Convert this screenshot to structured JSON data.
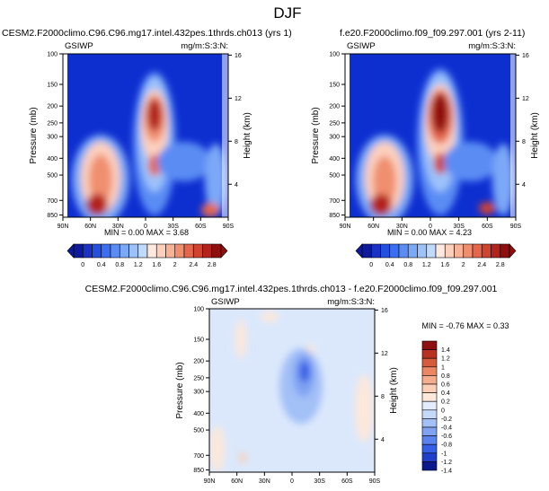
{
  "figure": {
    "title": "DJF"
  },
  "palettes": {
    "abs": [
      "#0d1a9c",
      "#1a33c4",
      "#2450e0",
      "#3b6ef0",
      "#5a8cf4",
      "#7ba8f7",
      "#9dc2fa",
      "#c0dafc",
      "#ffe9de",
      "#fcd0bd",
      "#f8b397",
      "#f08f70",
      "#e4674d",
      "#d0432f",
      "#b3231c",
      "#8f0e0e"
    ],
    "diff": [
      "#0a1a8c",
      "#1f3fcb",
      "#345fe6",
      "#5a83ee",
      "#7fa2f3",
      "#a3c0f7",
      "#c5d9fb",
      "#e2ecfd",
      "#fde8da",
      "#fbcfb5",
      "#f5ae8d",
      "#ec8663",
      "#d65a3d",
      "#b73220",
      "#8e1010"
    ]
  },
  "chart_data": [
    {
      "type": "heatmap",
      "panel_title": "CESM2.F2000climo.C96.C96.mg17.intel.432pes.1thrds.ch013 (yrs 1)",
      "variable": "GSIWP",
      "units": "mg/m:S:3:N:",
      "xlabel": "",
      "ylabel": "Pressure (mb)",
      "y2label": "Height (km)",
      "x_ticks": [
        "90N",
        "60N",
        "30N",
        "0",
        "30S",
        "60S",
        "90S"
      ],
      "y_ticks": [
        100,
        150,
        200,
        250,
        300,
        400,
        500,
        700,
        850
      ],
      "y2_ticks": [
        16,
        12,
        8,
        4
      ],
      "stats": "MIN =  0.00  MAX =   3.68",
      "colorbar_labels": [
        "0",
        "0.4",
        "0.8",
        "1.2",
        "1.6",
        "2",
        "2.4",
        "2.8"
      ],
      "features": [
        {
          "lat": 12,
          "plev": 270,
          "value": 3.6
        },
        {
          "lat": 60,
          "plev": 480,
          "value": 1.5
        },
        {
          "lat": 55,
          "plev": 830,
          "value": 2.8
        },
        {
          "lat": -60,
          "plev": 840,
          "value": 2.6
        },
        {
          "lat": -25,
          "plev": 550,
          "value": 0.7
        }
      ]
    },
    {
      "type": "heatmap",
      "panel_title": "f.e20.F2000climo.f09_f09.297.001 (yrs 2-11)",
      "variable": "GSIWP",
      "units": "mg/m:S:3:N:",
      "xlabel": "",
      "ylabel": "Pressure (mb)",
      "y2label": "Height (km)",
      "x_ticks": [
        "90N",
        "60N",
        "30N",
        "0",
        "30S",
        "60S",
        "90S"
      ],
      "y_ticks": [
        100,
        150,
        200,
        250,
        300,
        400,
        500,
        700,
        850
      ],
      "y2_ticks": [
        16,
        12,
        8,
        4
      ],
      "stats": "MIN =  0.00  MAX =   4.23",
      "colorbar_labels": [
        "0",
        "0.4",
        "0.8",
        "1.2",
        "1.6",
        "2",
        "2.4",
        "2.8"
      ],
      "features": [
        {
          "lat": 10,
          "plev": 260,
          "value": 4.2
        },
        {
          "lat": 62,
          "plev": 470,
          "value": 1.4
        },
        {
          "lat": 55,
          "plev": 830,
          "value": 2.7
        },
        {
          "lat": -60,
          "plev": 840,
          "value": 2.6
        },
        {
          "lat": -28,
          "plev": 550,
          "value": 0.6
        }
      ]
    },
    {
      "type": "heatmap",
      "panel_title": "CESM2.F2000climo.C96.C96.mg17.intel.432pes.1thrds.ch013 - f.e20.F2000climo.f09_f09.297.001",
      "variable": "GSIWP",
      "units": "mg/m:S:3:N:",
      "xlabel": "",
      "ylabel": "Pressure (mb)",
      "y2label": "Height (km)",
      "x_ticks": [
        "90N",
        "60N",
        "30N",
        "0",
        "30S",
        "60S",
        "90S"
      ],
      "y_ticks": [
        100,
        150,
        200,
        250,
        300,
        400,
        500,
        700,
        850
      ],
      "y2_ticks": [
        16,
        12,
        8,
        4
      ],
      "stats": "MIN = -0.76  MAX =   0.33",
      "colorbar_labels": [
        "1.4",
        "1.2",
        "1",
        "0.8",
        "0.6",
        "0.4",
        "0.2",
        "0",
        "-0.2",
        "-0.4",
        "-0.6",
        "-0.8",
        "-1",
        "-1.2",
        "-1.4"
      ],
      "features": [
        {
          "lat": 12,
          "plev": 240,
          "value": -0.76
        },
        {
          "lat": 50,
          "plev": 800,
          "value": 0.33
        },
        {
          "lat": 45,
          "plev": 150,
          "value": 0.1
        }
      ]
    }
  ]
}
